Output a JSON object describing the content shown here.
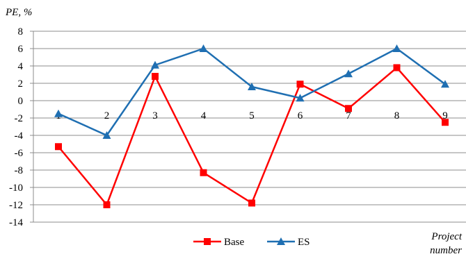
{
  "chart_data": {
    "type": "line",
    "ylabel": "PE, %",
    "xlabel": "Project number",
    "xlabel_lines": [
      "Project",
      "number"
    ],
    "ylim": [
      -14,
      8
    ],
    "y_ticks": [
      8,
      6,
      4,
      2,
      0,
      -2,
      -4,
      -6,
      -8,
      -10,
      -12,
      -14
    ],
    "categories": [
      "1",
      "2",
      "3",
      "4",
      "5",
      "6",
      "7",
      "8",
      "9"
    ],
    "grid": true,
    "legend_position": "bottom",
    "series": [
      {
        "name": "Base",
        "color": "#ff0000",
        "marker": "square",
        "values": [
          -5.3,
          -12.0,
          2.8,
          -8.3,
          -11.8,
          1.9,
          -0.9,
          3.8,
          -2.5
        ]
      },
      {
        "name": "ES",
        "color": "#1f6fb2",
        "marker": "triangle",
        "values": [
          -1.5,
          -4.0,
          4.1,
          6.0,
          1.6,
          0.3,
          3.1,
          6.0,
          1.9
        ]
      }
    ]
  }
}
